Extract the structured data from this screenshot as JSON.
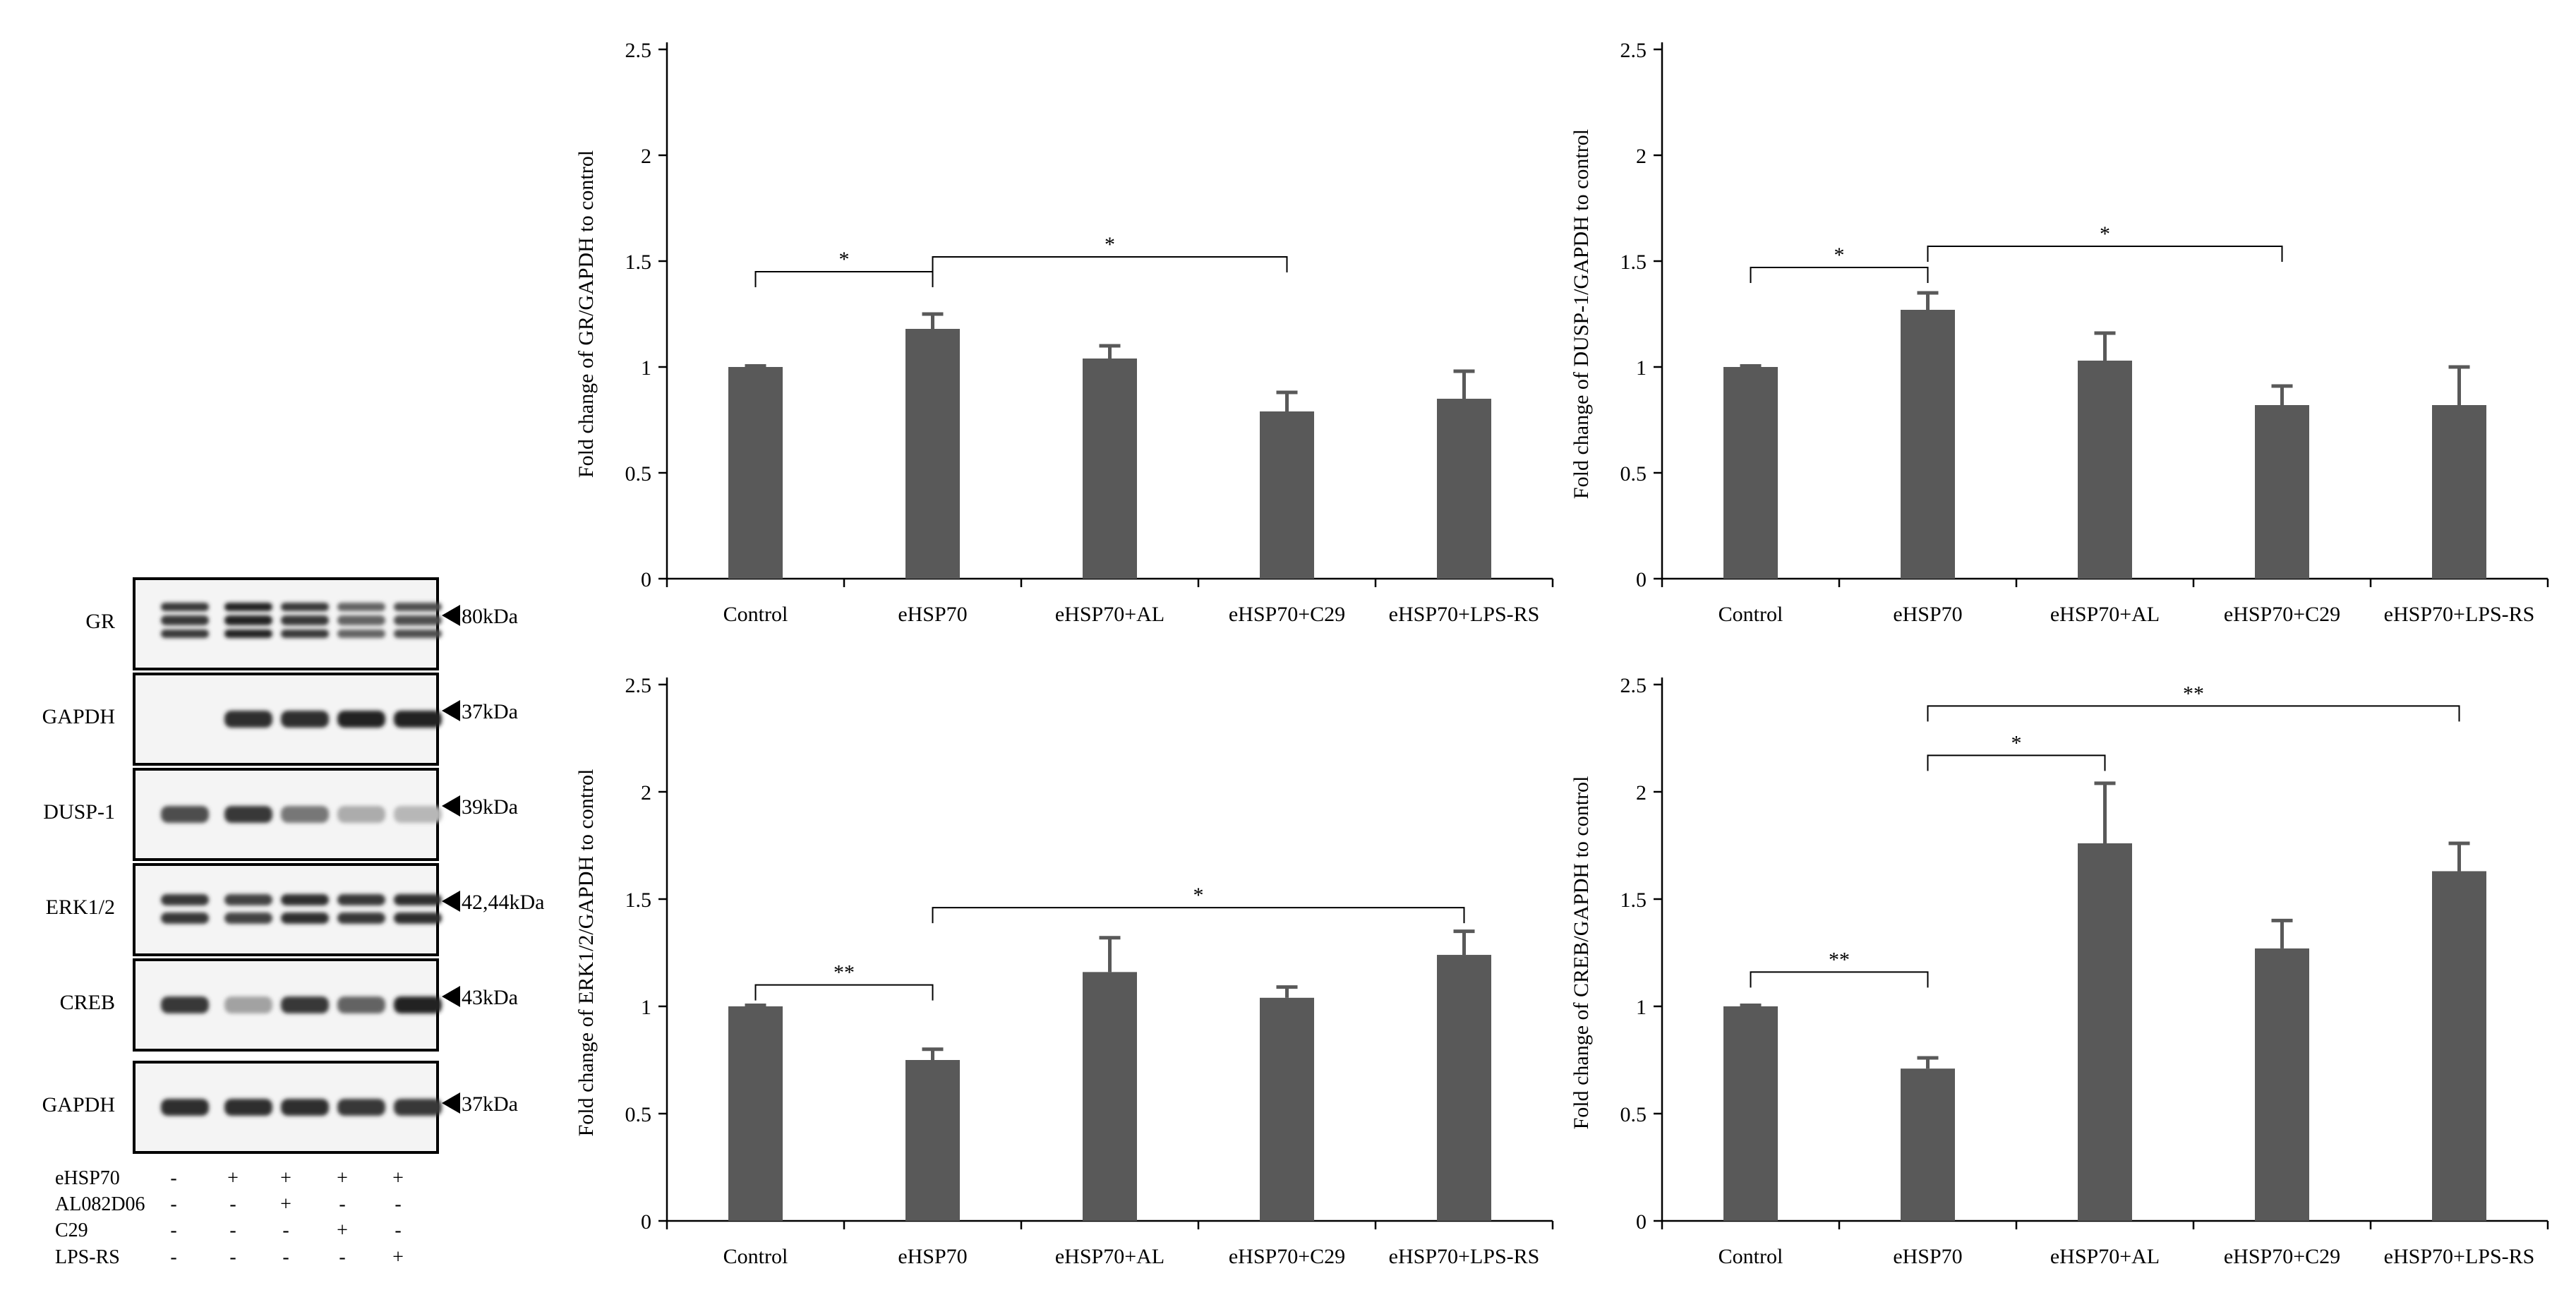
{
  "blots": {
    "rows": [
      {
        "label": "GR",
        "kda": "80kDa",
        "intensity": [
          0.85,
          0.95,
          0.85,
          0.65,
          0.75
        ],
        "bands": 3
      },
      {
        "label": "GAPDH",
        "kda": "37kDa",
        "intensity": [
          0.0,
          0.9,
          0.9,
          0.95,
          0.95
        ],
        "bands": 1
      },
      {
        "label": "DUSP-1",
        "kda": "39kDa",
        "intensity": [
          0.75,
          0.85,
          0.55,
          0.3,
          0.25
        ],
        "bands": 1
      },
      {
        "label": "ERK1/2",
        "kda": "42,44kDa",
        "intensity": [
          0.85,
          0.8,
          0.9,
          0.85,
          0.9
        ],
        "bands": 2
      },
      {
        "label": "CREB",
        "kda": "43kDa",
        "intensity": [
          0.85,
          0.35,
          0.85,
          0.65,
          0.95
        ],
        "bands": 1
      },
      {
        "label": "GAPDH",
        "kda": "37kDa",
        "intensity": [
          0.9,
          0.9,
          0.9,
          0.85,
          0.85
        ],
        "bands": 1
      }
    ],
    "treatments": [
      {
        "label": "eHSP70",
        "signs": [
          "-",
          "+",
          "+",
          "+",
          "+"
        ]
      },
      {
        "label": "AL082D06",
        "signs": [
          "-",
          "-",
          "+",
          "-",
          "-"
        ]
      },
      {
        "label": "C29",
        "signs": [
          "-",
          "-",
          "-",
          "+",
          "-"
        ]
      },
      {
        "label": "LPS-RS",
        "signs": [
          "-",
          "-",
          "-",
          "-",
          "+"
        ]
      }
    ]
  },
  "colors": {
    "bar": "#595959",
    "axis": "#000000"
  },
  "chart_data": [
    {
      "type": "bar",
      "ylabel": "Fold change of GR/GAPDH to control",
      "categories": [
        "Control",
        "eHSP70",
        "eHSP70+AL",
        "eHSP70+C29",
        "eHSP70+LPS-RS"
      ],
      "values": [
        1.0,
        1.18,
        1.04,
        0.79,
        0.85
      ],
      "errors": [
        0.005,
        0.07,
        0.06,
        0.09,
        0.13
      ],
      "ylim": [
        0,
        2.5
      ],
      "yticks": [
        "0",
        "0.5",
        "1",
        "1.5",
        "2",
        "2.5"
      ],
      "brackets": [
        {
          "from": 0,
          "to": 1,
          "y": 1.45,
          "label": "*"
        },
        {
          "from": 1,
          "to": 3,
          "y": 1.52,
          "label": "*"
        }
      ]
    },
    {
      "type": "bar",
      "ylabel": "Fold change of DUSP-1/GAPDH to control",
      "categories": [
        "Control",
        "eHSP70",
        "eHSP70+AL",
        "eHSP70+C29",
        "eHSP70+LPS-RS"
      ],
      "values": [
        1.0,
        1.27,
        1.03,
        0.82,
        0.82
      ],
      "errors": [
        0.005,
        0.08,
        0.13,
        0.09,
        0.18
      ],
      "ylim": [
        0,
        2.5
      ],
      "yticks": [
        "0",
        "0.5",
        "1",
        "1.5",
        "2",
        "2.5"
      ],
      "brackets": [
        {
          "from": 0,
          "to": 1,
          "y": 1.47,
          "label": "*"
        },
        {
          "from": 1,
          "to": 3,
          "y": 1.57,
          "label": "*"
        }
      ]
    },
    {
      "type": "bar",
      "ylabel": "Fold change of ERK1/2/GAPDH to control",
      "categories": [
        "Control",
        "eHSP70",
        "eHSP70+AL",
        "eHSP70+C29",
        "eHSP70+LPS-RS"
      ],
      "values": [
        1.0,
        0.75,
        1.16,
        1.04,
        1.24
      ],
      "errors": [
        0.005,
        0.05,
        0.16,
        0.05,
        0.11
      ],
      "ylim": [
        0,
        2.5
      ],
      "yticks": [
        "0",
        "0.5",
        "1",
        "1.5",
        "2",
        "2.5"
      ],
      "brackets": [
        {
          "from": 0,
          "to": 1,
          "y": 1.1,
          "label": "**"
        },
        {
          "from": 1,
          "to": 4,
          "y": 1.46,
          "label": "*"
        }
      ]
    },
    {
      "type": "bar",
      "ylabel": "Fold change of CREB/GAPDH to control",
      "categories": [
        "Control",
        "eHSP70",
        "eHSP70+AL",
        "eHSP70+C29",
        "eHSP70+LPS-RS"
      ],
      "values": [
        1.0,
        0.71,
        1.76,
        1.27,
        1.63
      ],
      "errors": [
        0.005,
        0.05,
        0.28,
        0.13,
        0.13
      ],
      "ylim": [
        0,
        2.5
      ],
      "yticks": [
        "0",
        "0.5",
        "1",
        "1.5",
        "2",
        "2.5"
      ],
      "brackets": [
        {
          "from": 0,
          "to": 1,
          "y": 1.16,
          "label": "**"
        },
        {
          "from": 1,
          "to": 2,
          "y": 2.17,
          "label": "*"
        },
        {
          "from": 1,
          "to": 4,
          "y": 2.4,
          "label": "**"
        }
      ]
    }
  ]
}
